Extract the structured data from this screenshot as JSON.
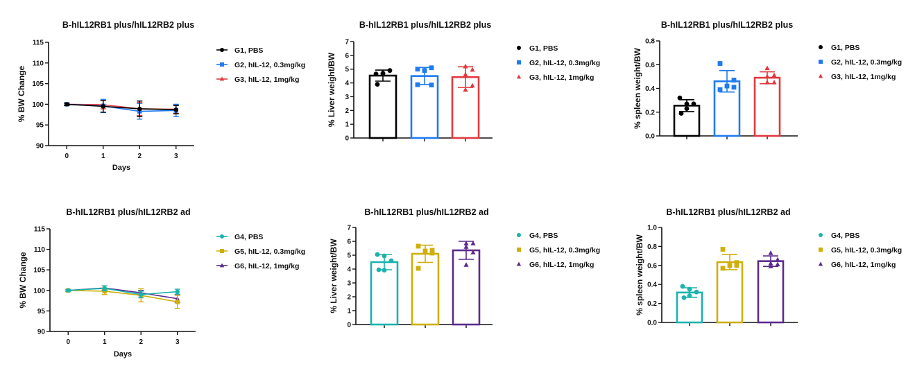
{
  "chart_data": [
    {
      "type": "line",
      "title": "B-hIL12RB1 plus/hIL12RB2 plus",
      "xlabel": "Days",
      "ylabel": "% BW Change",
      "x": [
        0,
        1,
        2,
        3
      ],
      "xticks": [
        "0",
        "1",
        "2",
        "3"
      ],
      "xlim": [
        -0.5,
        3.5
      ],
      "ylim": [
        90,
        115
      ],
      "yticks": [
        "90",
        "95",
        "100",
        "105",
        "110",
        "115"
      ],
      "legend_position": "right",
      "series": [
        {
          "name": "G1, PBS",
          "color": "#000000",
          "marker": "circle",
          "values": [
            100,
            99.5,
            98.9,
            98.7
          ],
          "err": [
            0.3,
            1.4,
            1.9,
            1.0
          ]
        },
        {
          "name": "G2, hIL-12, 0.3mg/kg",
          "color": "#1e7bf0",
          "marker": "square",
          "values": [
            100,
            99.6,
            98.3,
            98.5
          ],
          "err": [
            0.3,
            1.6,
            1.9,
            1.5
          ]
        },
        {
          "name": "G3, hIL-12, 1mg/kg",
          "color": "#e0393e",
          "marker": "triangle",
          "values": [
            100,
            99.9,
            98.9,
            98.8
          ],
          "err": [
            0.3,
            1.0,
            1.6,
            1.0
          ]
        }
      ]
    },
    {
      "type": "bar",
      "title": "B-hIL12RB1 plus/hIL12RB2 plus",
      "xlabel": "",
      "ylabel": "% Liver weight/BW",
      "ylim": [
        0,
        7
      ],
      "yticks": [
        "0",
        "1",
        "2",
        "3",
        "4",
        "5",
        "6",
        "7"
      ],
      "legend_position": "right",
      "series": [
        {
          "name": "G1, PBS",
          "color": "#000000",
          "marker": "circle",
          "value": 4.53,
          "err": 0.4,
          "points": [
            4.65,
            4.7,
            4.9,
            4.68,
            3.9
          ]
        },
        {
          "name": "G2, hIL-12, 0.3mg/kg",
          "color": "#1e7bf0",
          "marker": "square",
          "value": 4.5,
          "err": 0.62,
          "points": [
            5.0,
            5.1,
            4.9,
            3.85,
            3.87
          ]
        },
        {
          "name": "G3, hIL-12, 1mg/kg",
          "color": "#e0393e",
          "marker": "triangle",
          "value": 4.42,
          "err": 0.75,
          "points": [
            5.2,
            4.95,
            4.6,
            3.8,
            3.5
          ]
        }
      ]
    },
    {
      "type": "bar",
      "title": "B-hIL12RB1 plus/hIL12RB2 plus",
      "xlabel": "",
      "ylabel": "% spleen weight/BW",
      "ylim": [
        0,
        0.8
      ],
      "yticks": [
        "0.0",
        "0.2",
        "0.4",
        "0.6",
        "0.8"
      ],
      "legend_position": "right",
      "series": [
        {
          "name": "G1, PBS",
          "color": "#000000",
          "marker": "circle",
          "value": 0.255,
          "err": 0.05,
          "points": [
            0.32,
            0.27,
            0.27,
            0.23,
            0.19
          ]
        },
        {
          "name": "G2, hIL-12, 0.3mg/kg",
          "color": "#1e7bf0",
          "marker": "square",
          "value": 0.46,
          "err": 0.09,
          "points": [
            0.61,
            0.47,
            0.42,
            0.41,
            0.39
          ]
        },
        {
          "name": "G3, hIL-12, 1mg/kg",
          "color": "#e0393e",
          "marker": "triangle",
          "value": 0.49,
          "err": 0.05,
          "points": [
            0.57,
            0.51,
            0.5,
            0.45,
            0.45
          ]
        }
      ]
    },
    {
      "type": "line",
      "title": "B-hIL12RB1 plus/hIL12RB2 ad",
      "xlabel": "Days",
      "ylabel": "% BW Change",
      "x": [
        0,
        1,
        2,
        3
      ],
      "xticks": [
        "0",
        "1",
        "2",
        "3"
      ],
      "xlim": [
        -0.5,
        3.5
      ],
      "ylim": [
        90,
        115
      ],
      "yticks": [
        "90",
        "95",
        "100",
        "105",
        "110",
        "115"
      ],
      "legend_position": "right",
      "series": [
        {
          "name": "G4, PBS",
          "color": "#1ab3ad",
          "marker": "circle",
          "values": [
            100,
            100.5,
            99.0,
            99.7
          ],
          "err": [
            0.2,
            0.6,
            0.8,
            0.6
          ]
        },
        {
          "name": "G5, hIL-12, 0.3mg/kg",
          "color": "#cfaf0a",
          "marker": "square",
          "values": [
            100,
            99.8,
            98.8,
            97.2
          ],
          "err": [
            0.2,
            0.8,
            1.6,
            1.6
          ]
        },
        {
          "name": "G6, hIL-12, 1mg/kg",
          "color": "#5b2a8e",
          "marker": "triangle",
          "values": [
            100,
            100.6,
            99.4,
            98.0
          ],
          "err": [
            0.2,
            0.5,
            0.6,
            0.9
          ]
        }
      ]
    },
    {
      "type": "bar",
      "title": "B-hIL12RB1 plus/hIL12RB2 ad",
      "xlabel": "",
      "ylabel": "% Liver weight/BW",
      "ylim": [
        0,
        7
      ],
      "yticks": [
        "0",
        "1",
        "2",
        "3",
        "4",
        "5",
        "6",
        "7"
      ],
      "legend_position": "right",
      "series": [
        {
          "name": "G4, PBS",
          "color": "#1ab3ad",
          "marker": "circle",
          "value": 4.5,
          "err": 0.55,
          "points": [
            5.05,
            4.95,
            4.6,
            3.92,
            3.95
          ]
        },
        {
          "name": "G5, hIL-12, 0.3mg/kg",
          "color": "#cfaf0a",
          "marker": "square",
          "value": 5.1,
          "err": 0.62,
          "points": [
            5.65,
            5.35,
            5.3,
            5.15,
            4.05
          ]
        },
        {
          "name": "G6, hIL-12, 1mg/kg",
          "color": "#5b2a8e",
          "marker": "triangle",
          "value": 5.35,
          "err": 0.65,
          "points": [
            5.85,
            5.85,
            5.6,
            5.2,
            4.3
          ]
        }
      ]
    },
    {
      "type": "bar",
      "title": "B-hIL12RB1 plus/hIL12RB2 ad",
      "xlabel": "",
      "ylabel": "% spleen weight/BW",
      "ylim": [
        0,
        1.0
      ],
      "yticks": [
        "0.0",
        "0.2",
        "0.4",
        "0.6",
        "0.8",
        "1.0"
      ],
      "legend_position": "right",
      "series": [
        {
          "name": "G4, PBS",
          "color": "#1ab3ad",
          "marker": "circle",
          "value": 0.315,
          "err": 0.05,
          "points": [
            0.38,
            0.35,
            0.32,
            0.28,
            0.26
          ]
        },
        {
          "name": "G5, hIL-12, 0.3mg/kg",
          "color": "#cfaf0a",
          "marker": "square",
          "value": 0.635,
          "err": 0.08,
          "points": [
            0.77,
            0.63,
            0.6,
            0.6,
            0.57
          ]
        },
        {
          "name": "G6, hIL-12, 1mg/kg",
          "color": "#5b2a8e",
          "marker": "triangle",
          "value": 0.645,
          "err": 0.055,
          "points": [
            0.73,
            0.66,
            0.62,
            0.61,
            0.59
          ]
        }
      ]
    }
  ]
}
